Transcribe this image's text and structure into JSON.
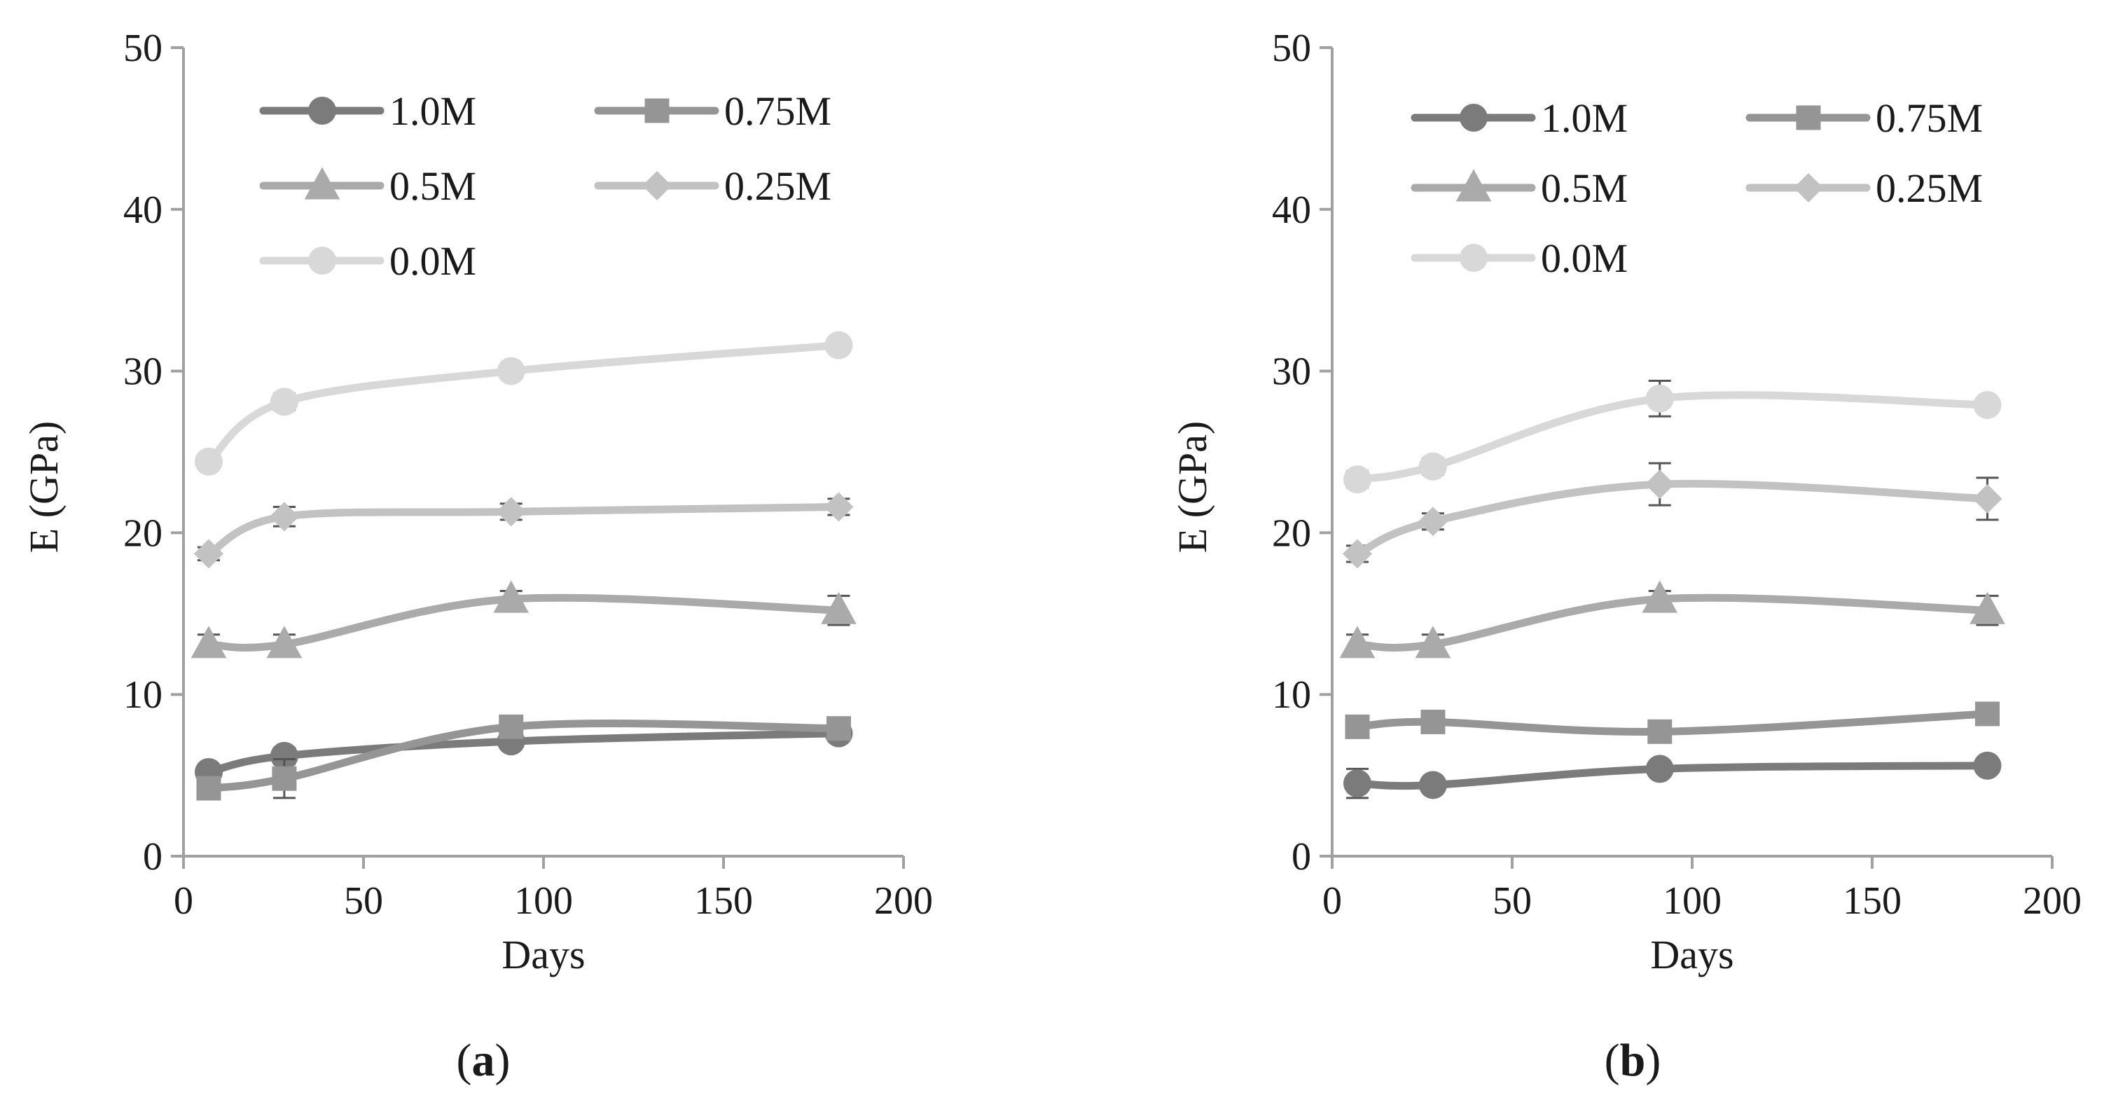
{
  "chart_data": [
    {
      "type": "line",
      "panel_label": "a",
      "caption_open": "(",
      "caption_close": ")",
      "xlabel": "Days",
      "ylabel": "E (GPa)",
      "xlim": [
        0,
        200
      ],
      "ylim": [
        0,
        50
      ],
      "xticks": [
        0,
        50,
        100,
        150,
        200
      ],
      "yticks": [
        0,
        10,
        20,
        30,
        40,
        50
      ],
      "grid": false,
      "legend_position": "top-left, two columns",
      "x": [
        7,
        28,
        91,
        182
      ],
      "series": [
        {
          "name": "1.0M",
          "marker": "circle",
          "color": "#7b7b7b",
          "values": [
            5.2,
            6.2,
            7.1,
            7.6
          ],
          "errors": [
            0.4,
            0.5,
            0.3,
            0.3
          ]
        },
        {
          "name": "0.75M",
          "marker": "square",
          "color": "#959595",
          "values": [
            4.2,
            4.8,
            8.0,
            7.9
          ],
          "errors": [
            0.4,
            1.2,
            0.4,
            0.3
          ]
        },
        {
          "name": "0.5M",
          "marker": "triangle",
          "color": "#aaaaaa",
          "values": [
            13.1,
            13.1,
            15.9,
            15.2
          ],
          "errors": [
            0.6,
            0.6,
            0.5,
            0.9
          ]
        },
        {
          "name": "0.25M",
          "marker": "diamond",
          "color": "#c2c2c2",
          "values": [
            18.7,
            21.0,
            21.3,
            21.6
          ],
          "errors": [
            0.4,
            0.6,
            0.5,
            0.5
          ]
        },
        {
          "name": "0.0M",
          "marker": "circle",
          "color": "#d8d8d8",
          "values": [
            24.4,
            28.1,
            30.0,
            31.6
          ],
          "errors": [
            0.4,
            0.5,
            0.4,
            0.4
          ]
        }
      ]
    },
    {
      "type": "line",
      "panel_label": "b",
      "caption_open": "(",
      "caption_close": ")",
      "xlabel": "Days",
      "ylabel": "E (GPa)",
      "xlim": [
        0,
        200
      ],
      "ylim": [
        0,
        50
      ],
      "xticks": [
        0,
        50,
        100,
        150,
        200
      ],
      "yticks": [
        0,
        10,
        20,
        30,
        40,
        50
      ],
      "grid": false,
      "legend_position": "top-left, two columns",
      "x": [
        7,
        28,
        91,
        182
      ],
      "series": [
        {
          "name": "1.0M",
          "marker": "circle",
          "color": "#7b7b7b",
          "values": [
            4.5,
            4.4,
            5.4,
            5.6
          ],
          "errors": [
            0.9,
            0.4,
            0.3,
            0.3
          ]
        },
        {
          "name": "0.75M",
          "marker": "square",
          "color": "#959595",
          "values": [
            8.0,
            8.3,
            7.7,
            8.8
          ],
          "errors": [
            0.4,
            0.4,
            0.4,
            0.4
          ]
        },
        {
          "name": "0.5M",
          "marker": "triangle",
          "color": "#aaaaaa",
          "values": [
            13.1,
            13.1,
            15.9,
            15.2
          ],
          "errors": [
            0.6,
            0.6,
            0.5,
            0.9
          ]
        },
        {
          "name": "0.25M",
          "marker": "diamond",
          "color": "#c2c2c2",
          "values": [
            18.7,
            20.7,
            23.0,
            22.1
          ],
          "errors": [
            0.5,
            0.5,
            1.3,
            1.3
          ]
        },
        {
          "name": "0.0M",
          "marker": "circle",
          "color": "#d8d8d8",
          "values": [
            23.3,
            24.1,
            28.3,
            27.9
          ],
          "errors": [
            0.5,
            0.5,
            1.1,
            0.4
          ]
        }
      ]
    }
  ]
}
